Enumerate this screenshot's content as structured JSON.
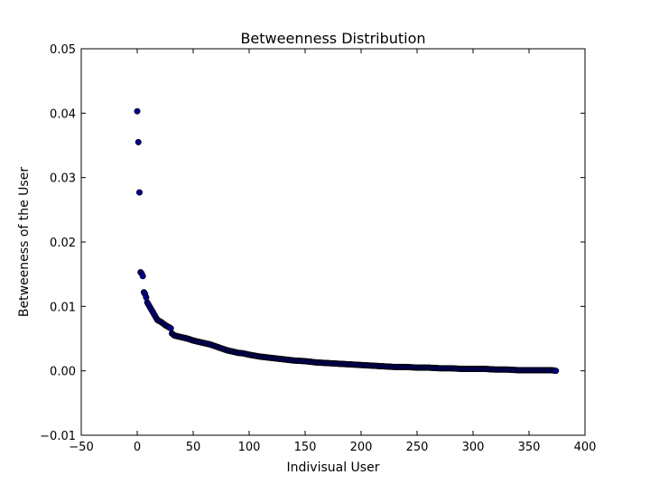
{
  "chart_data": {
    "type": "scatter",
    "title": "Betweenness Distribution",
    "xlabel": "Indivisual User",
    "ylabel": "Betweeness of the User",
    "xlim": [
      -50,
      400
    ],
    "ylim": [
      -0.01,
      0.05
    ],
    "xticks": [
      "−50",
      "0",
      "50",
      "100",
      "150",
      "200",
      "250",
      "300",
      "350",
      "400"
    ],
    "yticks": [
      "−0.01",
      "0.00",
      "0.01",
      "0.02",
      "0.03",
      "0.04",
      "0.05"
    ],
    "grid": false,
    "marker_color": "#00008b",
    "marker_edge": "#000000",
    "anchor_points": [
      [
        0,
        0.0403
      ],
      [
        1,
        0.0355
      ],
      [
        2,
        0.0277
      ],
      [
        3,
        0.0153
      ],
      [
        4,
        0.0151
      ],
      [
        5,
        0.0147
      ],
      [
        6,
        0.0122
      ],
      [
        7,
        0.0119
      ],
      [
        8,
        0.0114
      ],
      [
        9,
        0.0106
      ],
      [
        10,
        0.0103
      ],
      [
        12,
        0.0097
      ],
      [
        14,
        0.0091
      ],
      [
        16,
        0.0085
      ],
      [
        18,
        0.0079
      ],
      [
        20,
        0.0077
      ],
      [
        22,
        0.0075
      ],
      [
        25,
        0.0071
      ],
      [
        28,
        0.0068
      ],
      [
        30,
        0.0066
      ],
      [
        31,
        0.0058
      ],
      [
        33,
        0.0055
      ],
      [
        35,
        0.0054
      ],
      [
        40,
        0.0052
      ],
      [
        45,
        0.005
      ],
      [
        50,
        0.0047
      ],
      [
        55,
        0.0045
      ],
      [
        60,
        0.0043
      ],
      [
        65,
        0.0041
      ],
      [
        70,
        0.0038
      ],
      [
        75,
        0.0035
      ],
      [
        80,
        0.0032
      ],
      [
        85,
        0.003
      ],
      [
        90,
        0.0028
      ],
      [
        95,
        0.0027
      ],
      [
        100,
        0.0025
      ],
      [
        110,
        0.0022
      ],
      [
        120,
        0.002
      ],
      [
        130,
        0.0018
      ],
      [
        140,
        0.0016
      ],
      [
        150,
        0.0015
      ],
      [
        160,
        0.0013
      ],
      [
        170,
        0.0012
      ],
      [
        180,
        0.0011
      ],
      [
        190,
        0.001
      ],
      [
        200,
        0.0009
      ],
      [
        210,
        0.0008
      ],
      [
        220,
        0.0007
      ],
      [
        230,
        0.0006
      ],
      [
        240,
        0.0006
      ],
      [
        250,
        0.0005
      ],
      [
        260,
        0.0005
      ],
      [
        270,
        0.0004
      ],
      [
        280,
        0.0004
      ],
      [
        290,
        0.0003
      ],
      [
        300,
        0.0003
      ],
      [
        310,
        0.0003
      ],
      [
        320,
        0.0002
      ],
      [
        330,
        0.0002
      ],
      [
        340,
        0.0001
      ],
      [
        350,
        0.0001
      ],
      [
        360,
        0.0001
      ],
      [
        370,
        0.0001
      ],
      [
        374,
        0.0
      ]
    ]
  }
}
